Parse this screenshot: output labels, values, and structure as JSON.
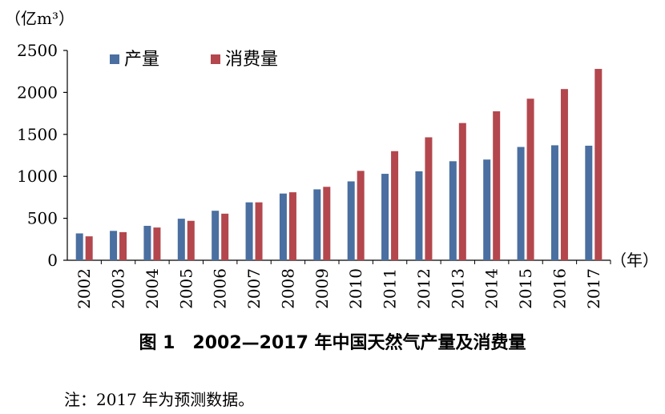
{
  "chart_data": {
    "type": "bar",
    "ylabel": "（亿m³）",
    "xlabel": "（年）",
    "ylim": [
      0,
      2500
    ],
    "yticks": [
      0,
      500,
      1000,
      1500,
      2000,
      2500
    ],
    "grid": false,
    "legend_position": "top-left",
    "categories": [
      "2002",
      "2003",
      "2004",
      "2005",
      "2006",
      "2007",
      "2008",
      "2009",
      "2010",
      "2011",
      "2012",
      "2013",
      "2014",
      "2015",
      "2016",
      "2017"
    ],
    "series": [
      {
        "name": "产量",
        "color": "#4a6fa0",
        "values": [
          320,
          350,
          410,
          495,
          590,
          690,
          795,
          845,
          940,
          1030,
          1060,
          1180,
          1200,
          1350,
          1370,
          1365
        ]
      },
      {
        "name": "消费量",
        "color": "#b3474d",
        "values": [
          285,
          335,
          390,
          470,
          555,
          690,
          810,
          875,
          1065,
          1300,
          1465,
          1635,
          1775,
          1925,
          2040,
          2280
        ]
      }
    ]
  },
  "caption": "图 1　2002—2017 年中国天然气产量及消费量",
  "note": "注：2017 年为预测数据。"
}
